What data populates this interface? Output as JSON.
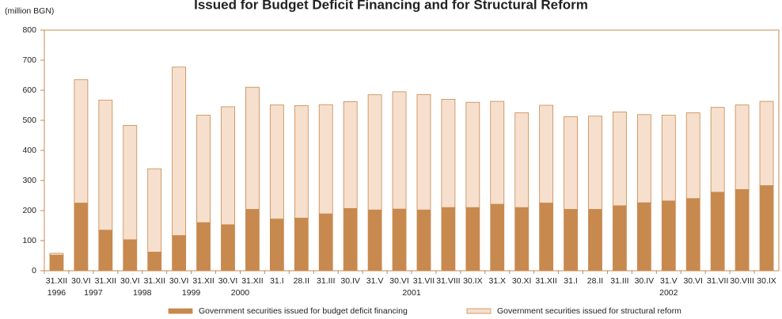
{
  "chart_data": {
    "type": "stacked_bar",
    "title": "Issued for Budget Deficit Financing and for Structural Reform",
    "y_label": "(million BGN)",
    "categories": [
      "31.XII",
      "30.VI",
      "31.XII",
      "30.VI",
      "31.XII",
      "30.VI",
      "31.XII",
      "30.VI",
      "31.XII",
      "31.I",
      "28.II",
      "31.III",
      "30.IV",
      "31.V",
      "30.VI",
      "31.VII",
      "31.VIII",
      "30.IX",
      "31.X",
      "30.XI",
      "31.XII",
      "31.I",
      "28.II",
      "31.III",
      "30.IV",
      "31.V",
      "30.VI",
      "31.VII",
      "30.VIII",
      "30.IX"
    ],
    "years": [
      "1996",
      "1997",
      null,
      "1998",
      null,
      "1999",
      null,
      "2000",
      null,
      "2001",
      null,
      null,
      null,
      null,
      null,
      null,
      null,
      null,
      null,
      null,
      null,
      "2002",
      null,
      null,
      null,
      null,
      null,
      null,
      null,
      null
    ],
    "series": [
      {
        "name": "Government securities issued for budget deficit financing",
        "color": "#c8894f",
        "values": [
          52,
          225,
          135,
          103,
          62,
          117,
          160,
          153,
          204,
          172,
          175,
          189,
          207,
          202,
          205,
          202,
          210,
          210,
          221,
          210,
          225,
          204,
          204,
          216,
          226,
          232,
          240,
          261,
          270,
          283
        ]
      },
      {
        "name": "Government securities issued for structural reform",
        "color": "#f6dfcc",
        "values": [
          6,
          410,
          432,
          380,
          277,
          560,
          357,
          392,
          406,
          379,
          374,
          363,
          355,
          383,
          390,
          384,
          360,
          350,
          342,
          315,
          325,
          308,
          310,
          312,
          293,
          285,
          285,
          282,
          281,
          280
        ]
      }
    ],
    "ylim": [
      0,
      800
    ],
    "yticks": [
      0,
      100,
      200,
      300,
      400,
      500,
      600,
      700,
      800
    ]
  }
}
